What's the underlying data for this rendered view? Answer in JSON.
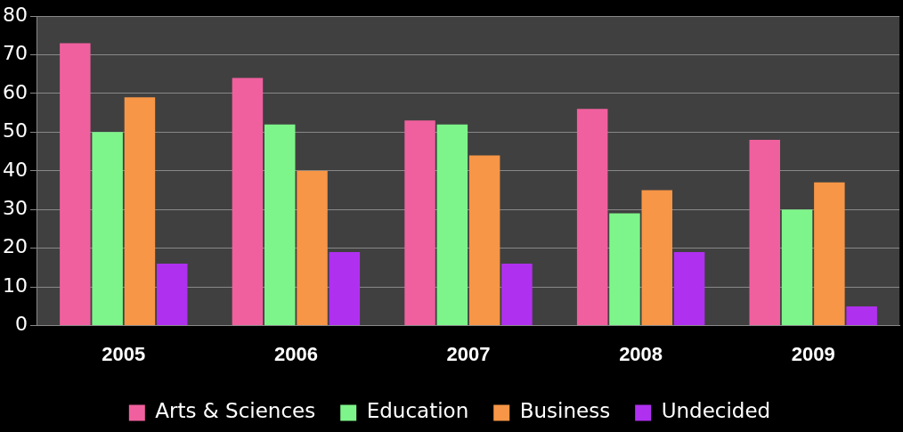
{
  "chart_data": {
    "type": "bar",
    "categories": [
      "2005",
      "2006",
      "2007",
      "2008",
      "2009"
    ],
    "series": [
      {
        "name": "Arts & Sciences",
        "color": "#f0609e",
        "values": [
          73,
          64,
          53,
          56,
          48
        ]
      },
      {
        "name": "Education",
        "color": "#7ef58a",
        "values": [
          50,
          52,
          52,
          29,
          30
        ]
      },
      {
        "name": "Business",
        "color": "#f79646",
        "values": [
          59,
          40,
          44,
          35,
          37
        ]
      },
      {
        "name": "Undecided",
        "color": "#b030f0",
        "values": [
          16,
          19,
          16,
          19,
          5
        ]
      }
    ],
    "ylim": [
      0,
      80
    ],
    "yticks": [
      0,
      10,
      20,
      30,
      40,
      50,
      60,
      70,
      80
    ],
    "grid": "y",
    "legend": "bottom"
  }
}
